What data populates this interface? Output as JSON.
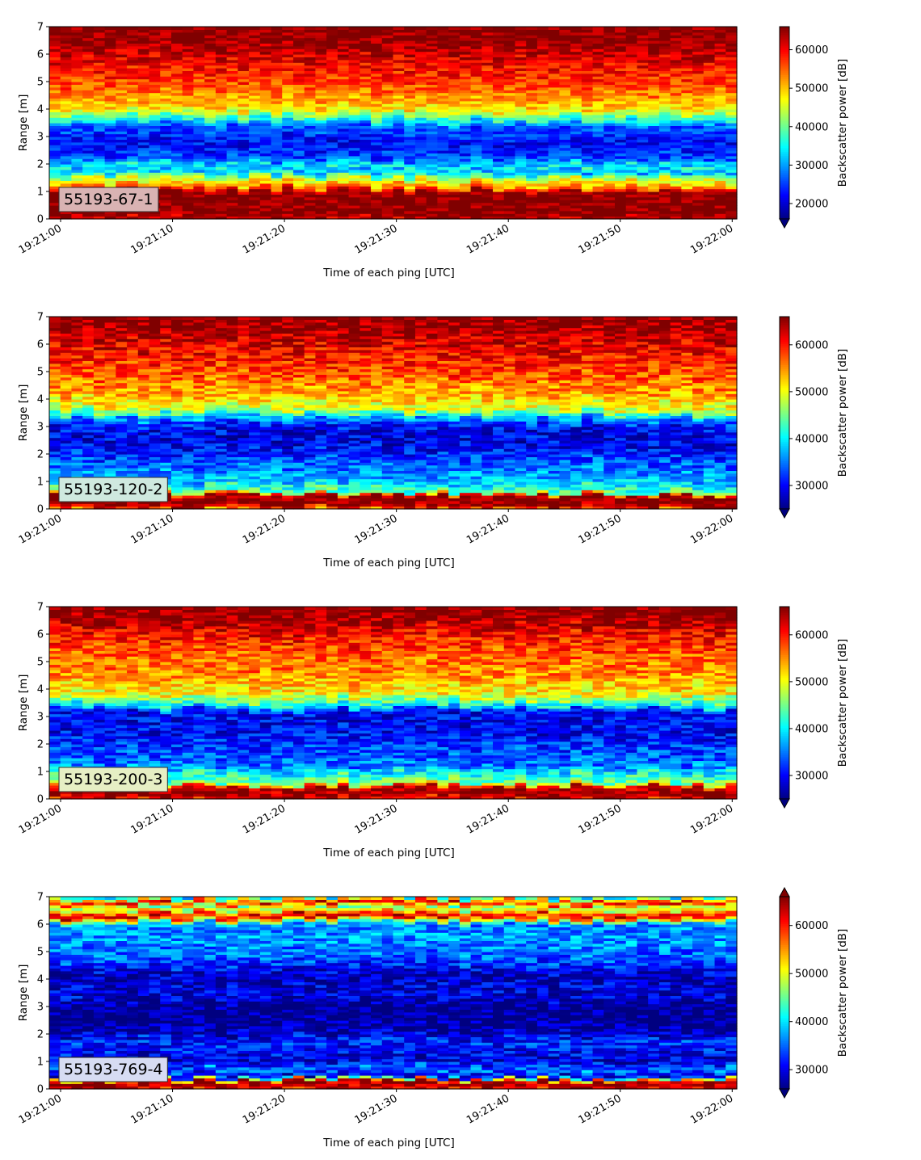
{
  "figure": {
    "x_tick_labels": [
      "19:21:00",
      "19:21:10",
      "19:21:20",
      "19:21:30",
      "19:21:40",
      "19:21:50",
      "19:22:00"
    ],
    "y_tick_labels": [
      "0",
      "1",
      "2",
      "3",
      "4",
      "5",
      "6",
      "7"
    ],
    "xlabel": "Time of each ping [UTC]",
    "ylabel": "Range [m]",
    "colorbar_label": "Backscatter power [dB]",
    "colormap": "jet"
  },
  "chart_data": [
    {
      "type": "heatmap",
      "label": "55193-67-1",
      "label_box_color": "#d9b3b3",
      "x_range": [
        "19:21:00",
        "19:22:00"
      ],
      "ylim": [
        0,
        7
      ],
      "colorbar": {
        "ticks": [
          20000,
          30000,
          40000,
          50000,
          60000
        ],
        "tick_labels": [
          "20000",
          "30000",
          "40000",
          "50000",
          "60000"
        ],
        "min": 16000,
        "max": 66000,
        "extend": "min"
      },
      "range_profile": [
        {
          "y": 0.0,
          "v": 62000
        },
        {
          "y": 0.2,
          "v": 66000
        },
        {
          "y": 1.0,
          "v": 66000
        },
        {
          "y": 1.2,
          "v": 52000
        },
        {
          "y": 1.5,
          "v": 45000
        },
        {
          "y": 1.75,
          "v": 30000
        },
        {
          "y": 1.95,
          "v": 36000
        },
        {
          "y": 2.2,
          "v": 26000
        },
        {
          "y": 2.8,
          "v": 22000
        },
        {
          "y": 3.4,
          "v": 27000
        },
        {
          "y": 3.7,
          "v": 38000
        },
        {
          "y": 4.0,
          "v": 48000
        },
        {
          "y": 4.5,
          "v": 53000
        },
        {
          "y": 5.2,
          "v": 58000
        },
        {
          "y": 6.0,
          "v": 62000
        },
        {
          "y": 6.4,
          "v": 65000
        },
        {
          "y": 7.0,
          "v": 66000
        }
      ]
    },
    {
      "type": "heatmap",
      "label": "55193-120-2",
      "label_box_color": "#cfe9df",
      "x_range": [
        "19:21:00",
        "19:22:00"
      ],
      "ylim": [
        0,
        7
      ],
      "colorbar": {
        "ticks": [
          30000,
          40000,
          50000,
          60000
        ],
        "tick_labels": [
          "30000",
          "40000",
          "50000",
          "60000"
        ],
        "min": 25000,
        "max": 66000,
        "extend": "min"
      },
      "range_profile": [
        {
          "y": 0.0,
          "v": 55000
        },
        {
          "y": 0.15,
          "v": 66000
        },
        {
          "y": 0.5,
          "v": 66000
        },
        {
          "y": 0.6,
          "v": 45000
        },
        {
          "y": 1.0,
          "v": 38000
        },
        {
          "y": 1.3,
          "v": 36000
        },
        {
          "y": 1.8,
          "v": 33000
        },
        {
          "y": 2.4,
          "v": 29000
        },
        {
          "y": 3.0,
          "v": 30000
        },
        {
          "y": 3.3,
          "v": 36000
        },
        {
          "y": 3.6,
          "v": 48000
        },
        {
          "y": 4.2,
          "v": 54000
        },
        {
          "y": 5.0,
          "v": 58000
        },
        {
          "y": 6.0,
          "v": 62000
        },
        {
          "y": 6.6,
          "v": 65000
        },
        {
          "y": 7.0,
          "v": 66000
        }
      ]
    },
    {
      "type": "heatmap",
      "label": "55193-200-3",
      "label_box_color": "#e6efc4",
      "x_range": [
        "19:21:00",
        "19:22:00"
      ],
      "ylim": [
        0,
        7
      ],
      "colorbar": {
        "ticks": [
          30000,
          40000,
          50000,
          60000
        ],
        "tick_labels": [
          "30000",
          "40000",
          "50000",
          "60000"
        ],
        "min": 25000,
        "max": 66000,
        "extend": "min"
      },
      "range_profile": [
        {
          "y": 0.0,
          "v": 60000
        },
        {
          "y": 0.15,
          "v": 66000
        },
        {
          "y": 0.45,
          "v": 63000
        },
        {
          "y": 0.6,
          "v": 45000
        },
        {
          "y": 0.9,
          "v": 42000
        },
        {
          "y": 1.2,
          "v": 35000
        },
        {
          "y": 1.8,
          "v": 33000
        },
        {
          "y": 2.4,
          "v": 30000
        },
        {
          "y": 3.2,
          "v": 30000
        },
        {
          "y": 3.4,
          "v": 40000
        },
        {
          "y": 3.8,
          "v": 50000
        },
        {
          "y": 4.5,
          "v": 55000
        },
        {
          "y": 5.5,
          "v": 58000
        },
        {
          "y": 6.2,
          "v": 62000
        },
        {
          "y": 6.6,
          "v": 65000
        },
        {
          "y": 7.0,
          "v": 66000
        }
      ]
    },
    {
      "type": "heatmap",
      "label": "55193-769-4",
      "label_box_color": "#d7dcf3",
      "x_range": [
        "19:21:00",
        "19:22:00"
      ],
      "ylim": [
        0,
        7
      ],
      "colorbar": {
        "ticks": [
          30000,
          40000,
          50000,
          60000
        ],
        "tick_labels": [
          "30000",
          "40000",
          "50000",
          "60000"
        ],
        "min": 26000,
        "max": 66000,
        "extend": "both"
      },
      "range_profile": [
        {
          "y": 0.0,
          "v": 60000
        },
        {
          "y": 0.15,
          "v": 66000
        },
        {
          "y": 0.3,
          "v": 62000
        },
        {
          "y": 0.45,
          "v": 30000
        },
        {
          "y": 0.75,
          "v": 36000
        },
        {
          "y": 1.0,
          "v": 29000
        },
        {
          "y": 1.7,
          "v": 33000
        },
        {
          "y": 2.2,
          "v": 27000
        },
        {
          "y": 3.0,
          "v": 26000
        },
        {
          "y": 3.4,
          "v": 30000
        },
        {
          "y": 4.2,
          "v": 29000
        },
        {
          "y": 4.8,
          "v": 35000
        },
        {
          "y": 5.6,
          "v": 37000
        },
        {
          "y": 6.0,
          "v": 36000
        },
        {
          "y": 6.3,
          "v": 64000
        },
        {
          "y": 6.6,
          "v": 45000
        },
        {
          "y": 6.8,
          "v": 62000
        },
        {
          "y": 7.0,
          "v": 40000
        }
      ]
    }
  ]
}
